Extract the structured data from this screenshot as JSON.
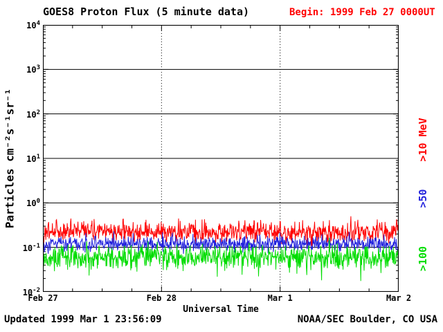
{
  "page": {
    "title": "GOES8 Proton Flux (5 minute data)",
    "begin_label": "Begin: 1999 Feb 27 0000UT",
    "updated_label": "Updated 1999 Mar 1 23:56:09",
    "source_label": "NOAA/SEC Boulder, CO USA"
  },
  "colors": {
    "background": "#ffffff",
    "axis": "#000000",
    "begin_text": "#ff0000"
  },
  "chart_data": {
    "type": "line",
    "title": "GOES8 Proton Flux (5 minute data)",
    "xlabel": "Universal Time",
    "ylabel": "Particles cm⁻²s⁻¹sr⁻¹",
    "y_scale": "log",
    "ylim": [
      0.01,
      10000
    ],
    "y_tick_exponents": [
      4,
      3,
      2,
      1,
      0,
      -1,
      -2
    ],
    "x_range_days": 3,
    "x_tick_labels": [
      "Feb 27",
      "Feb 28",
      "Mar 1",
      "Mar 2"
    ],
    "sample_interval_minutes": 5,
    "solid_hlines_at": [
      0.1,
      1,
      10,
      100,
      1000
    ],
    "dotted_vlines_at_days": [
      1,
      2
    ],
    "grid": true,
    "legend_position": "right-rotated",
    "series": [
      {
        "name": ">10 MeV",
        "color": "#ff0000",
        "approx_flux_level": 0.22,
        "flux_range": [
          0.08,
          0.9
        ],
        "log10_mean": -0.66,
        "log10_sd": 0.11,
        "spike_prob": 0.025,
        "spike_log10": 0.33
      },
      {
        "name": ">50",
        "color": "#2222dd",
        "approx_flux_level": 0.12,
        "flux_range": [
          0.06,
          0.25
        ],
        "log10_mean": -0.92,
        "log10_sd": 0.09,
        "spike_prob": 0.012,
        "spike_log10": 0.15
      },
      {
        "name": ">100",
        "color": "#00dd00",
        "approx_flux_level": 0.06,
        "flux_range": [
          0.02,
          0.12
        ],
        "log10_mean": -1.22,
        "log10_sd": 0.13,
        "spike_prob": 0.02,
        "spike_log10": -0.3
      }
    ],
    "seed": 19990227
  }
}
